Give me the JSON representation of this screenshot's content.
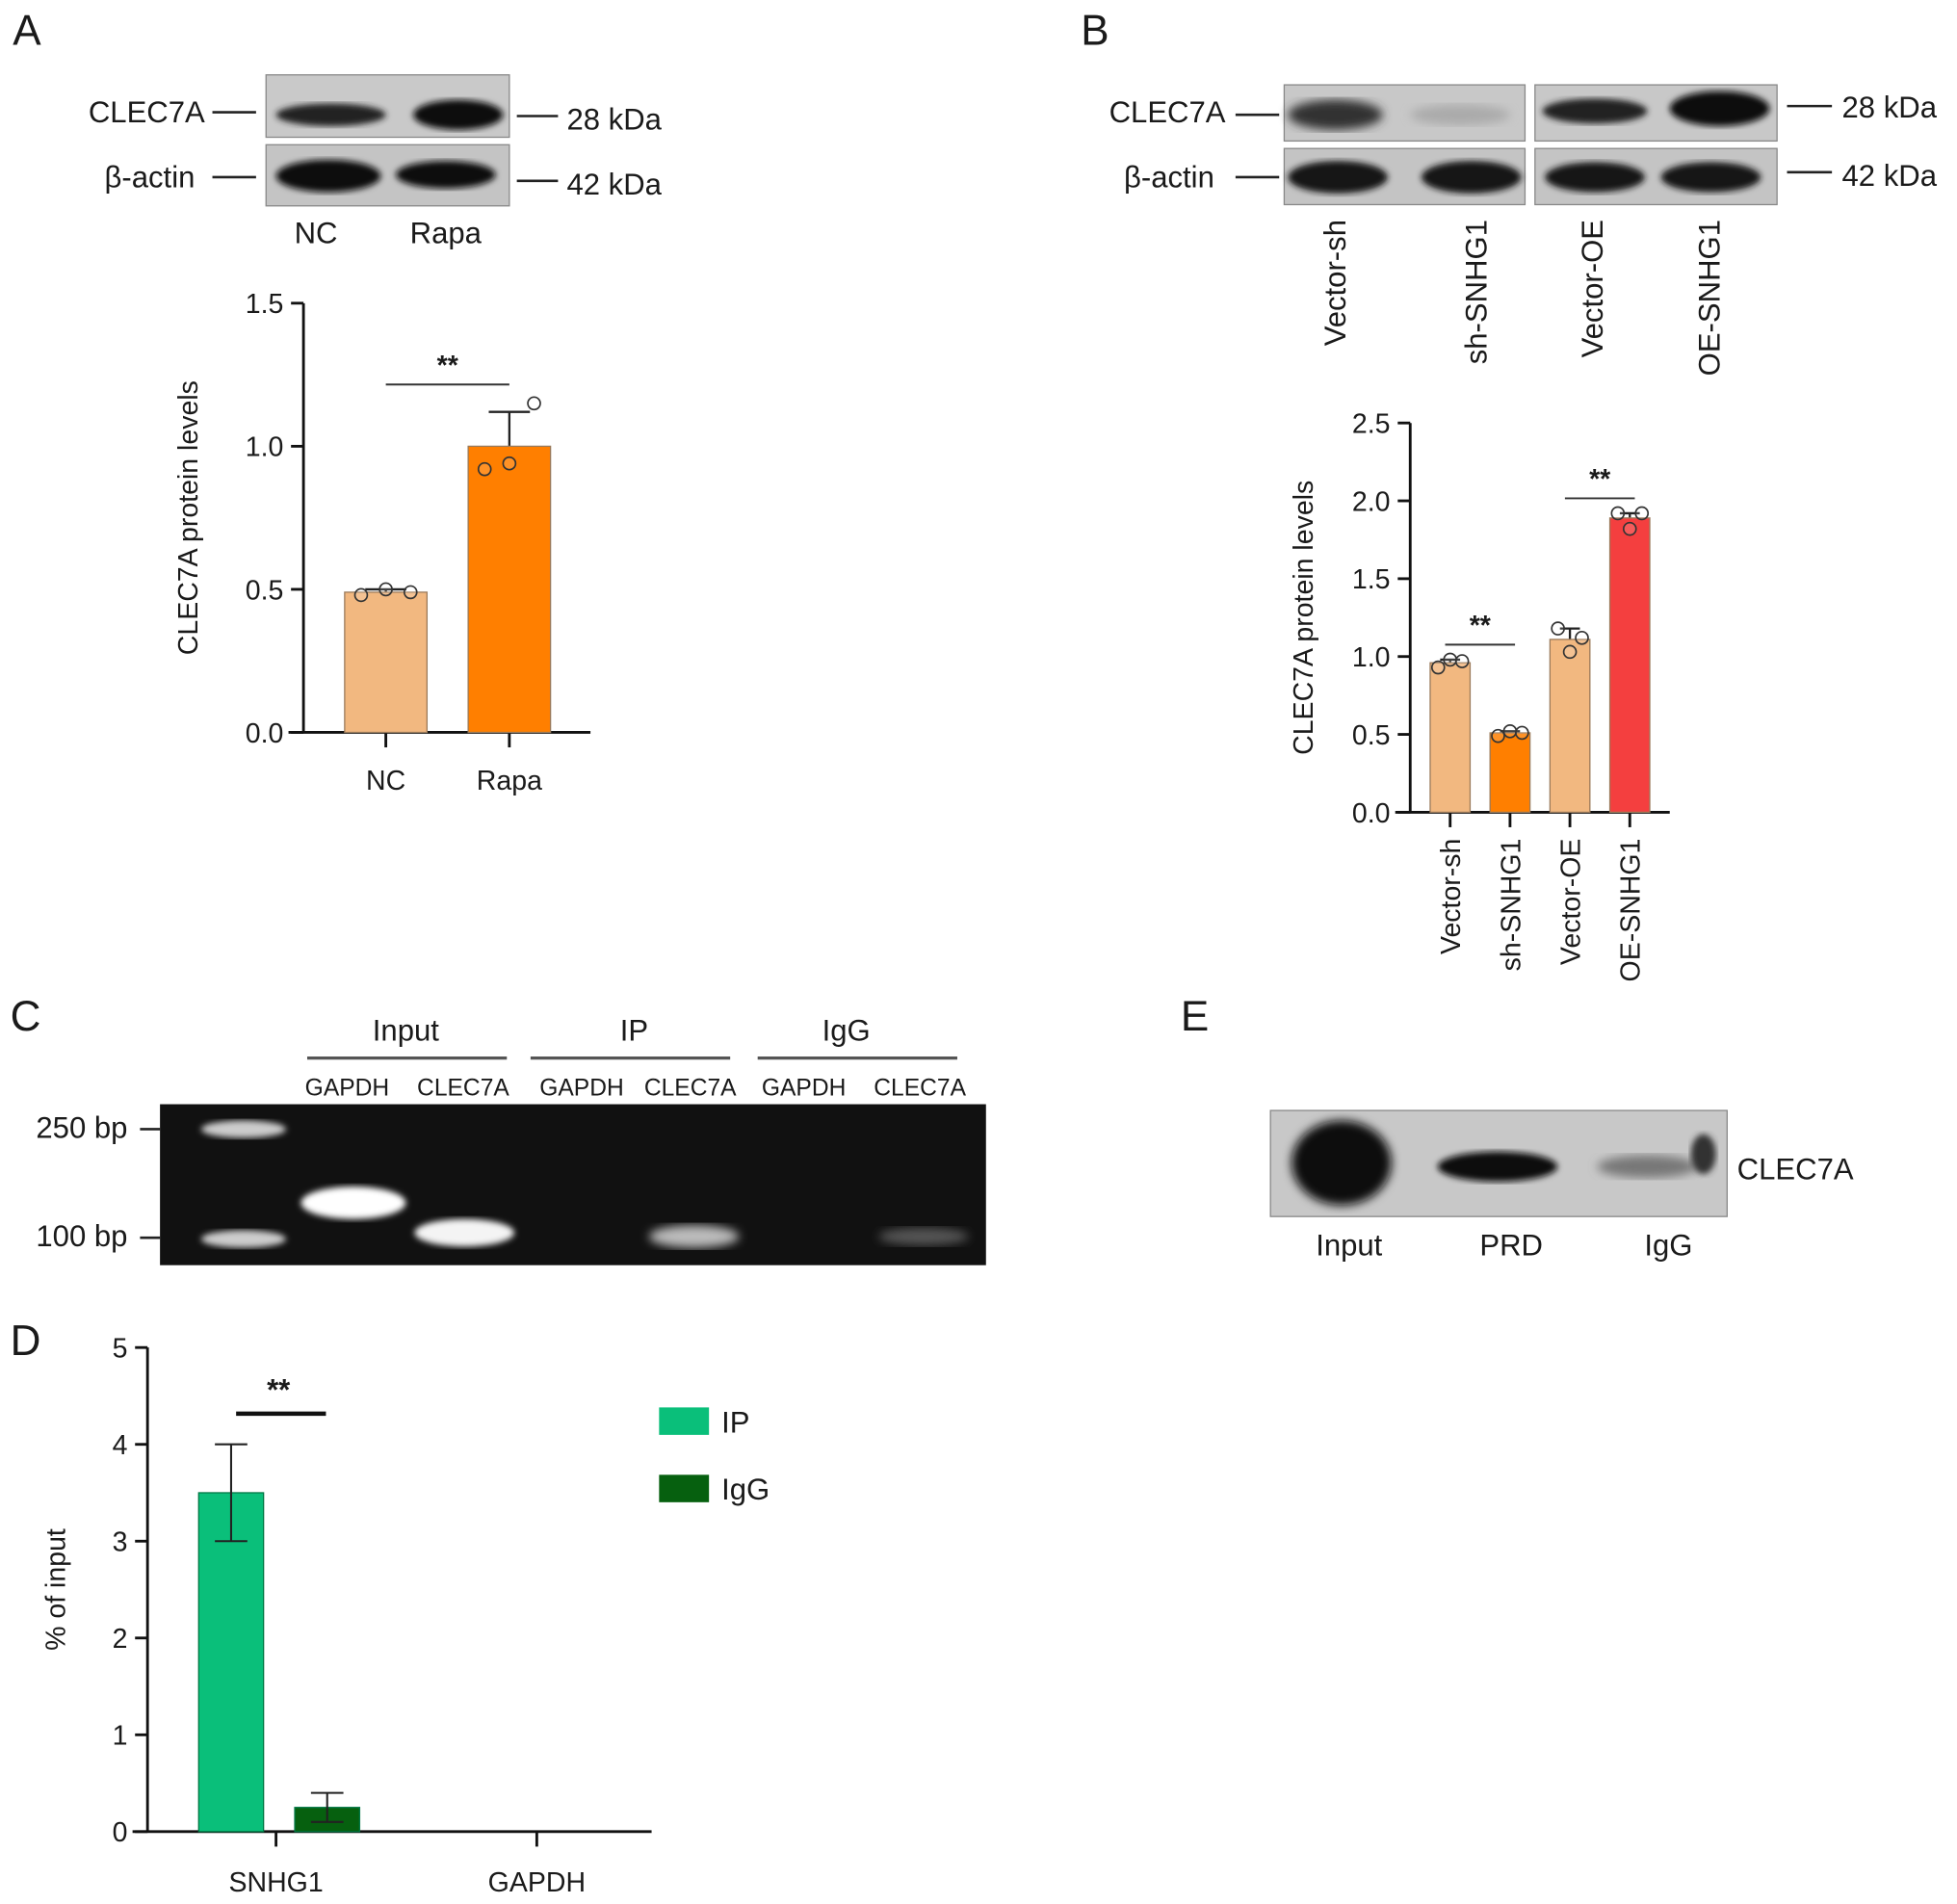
{
  "panels": {
    "a": "A",
    "b": "B",
    "c": "C",
    "d": "D",
    "e": "E"
  },
  "blot_a": {
    "rows": [
      "CLEC7A",
      "β-actin"
    ],
    "sizes": [
      "28 kDa",
      "42 kDa"
    ],
    "lanes": [
      "NC",
      "Rapa"
    ]
  },
  "blot_b": {
    "rows": [
      "CLEC7A",
      "β-actin"
    ],
    "sizes": [
      "28 kDa",
      "42 kDa"
    ],
    "lanes": [
      "Vector-sh",
      "sh-SNHG1",
      "Vector-OE",
      "OE-SNHG1"
    ]
  },
  "gel_c": {
    "groups": [
      "Input",
      "IP",
      "IgG"
    ],
    "lanes": [
      "GAPDH",
      "CLEC7A",
      "GAPDH",
      "CLEC7A",
      "GAPDH",
      "CLEC7A"
    ],
    "markers": [
      "250 bp",
      "100 bp"
    ]
  },
  "blot_e": {
    "lanes": [
      "Input",
      "PRD",
      "IgG"
    ],
    "band": "CLEC7A"
  },
  "chart_data": [
    {
      "id": "A",
      "type": "bar",
      "ylabel": "CLEC7A protein levels",
      "ylim": [
        0,
        1.5
      ],
      "yticks": [
        "0.0",
        "0.5",
        "1.0",
        "1.5"
      ],
      "categories": [
        "NC",
        "Rapa"
      ],
      "values": [
        0.49,
        1.0
      ],
      "errors": [
        0.01,
        0.12
      ],
      "points": [
        [
          0.48,
          0.5,
          0.49
        ],
        [
          0.92,
          0.94,
          1.15
        ]
      ],
      "colors": [
        "#f2b880",
        "#ff7f00"
      ],
      "significance": [
        {
          "from": 0,
          "to": 1,
          "label": "**"
        }
      ]
    },
    {
      "id": "B",
      "type": "bar",
      "ylabel": "CLEC7A protein levels",
      "ylim": [
        0,
        2.5
      ],
      "yticks": [
        "0.0",
        "0.5",
        "1.0",
        "1.5",
        "2.0",
        "2.5"
      ],
      "categories": [
        "Vector-sh",
        "sh-SNHG1",
        "Vector-OE",
        "OE-SNHG1"
      ],
      "values": [
        0.96,
        0.51,
        1.11,
        1.89
      ],
      "errors": [
        0.02,
        0.01,
        0.07,
        0.03
      ],
      "points": [
        [
          0.93,
          0.98,
          0.97
        ],
        [
          0.49,
          0.52,
          0.51
        ],
        [
          1.18,
          1.03,
          1.12
        ],
        [
          1.92,
          1.82,
          1.92
        ]
      ],
      "colors": [
        "#f2b880",
        "#ff7f00",
        "#f2b880",
        "#f43f3f"
      ],
      "significance": [
        {
          "from": 0,
          "to": 1,
          "label": "**"
        },
        {
          "from": 2,
          "to": 3,
          "label": "**"
        }
      ]
    },
    {
      "id": "D",
      "type": "bar",
      "ylabel": "% of input",
      "ylim": [
        0,
        5
      ],
      "yticks": [
        "0",
        "1",
        "2",
        "3",
        "4",
        "5"
      ],
      "categories": [
        "SNHG1",
        "GAPDH"
      ],
      "series": [
        {
          "name": "IP",
          "values": [
            3.5,
            0
          ],
          "errors": [
            0.5,
            0
          ],
          "color": "#0abf7a"
        },
        {
          "name": "IgG",
          "values": [
            0.25,
            0
          ],
          "errors": [
            0.15,
            0
          ],
          "color": "#06600f"
        }
      ],
      "significance": [
        {
          "category": 0,
          "label": "**"
        }
      ],
      "legend": "right"
    }
  ]
}
